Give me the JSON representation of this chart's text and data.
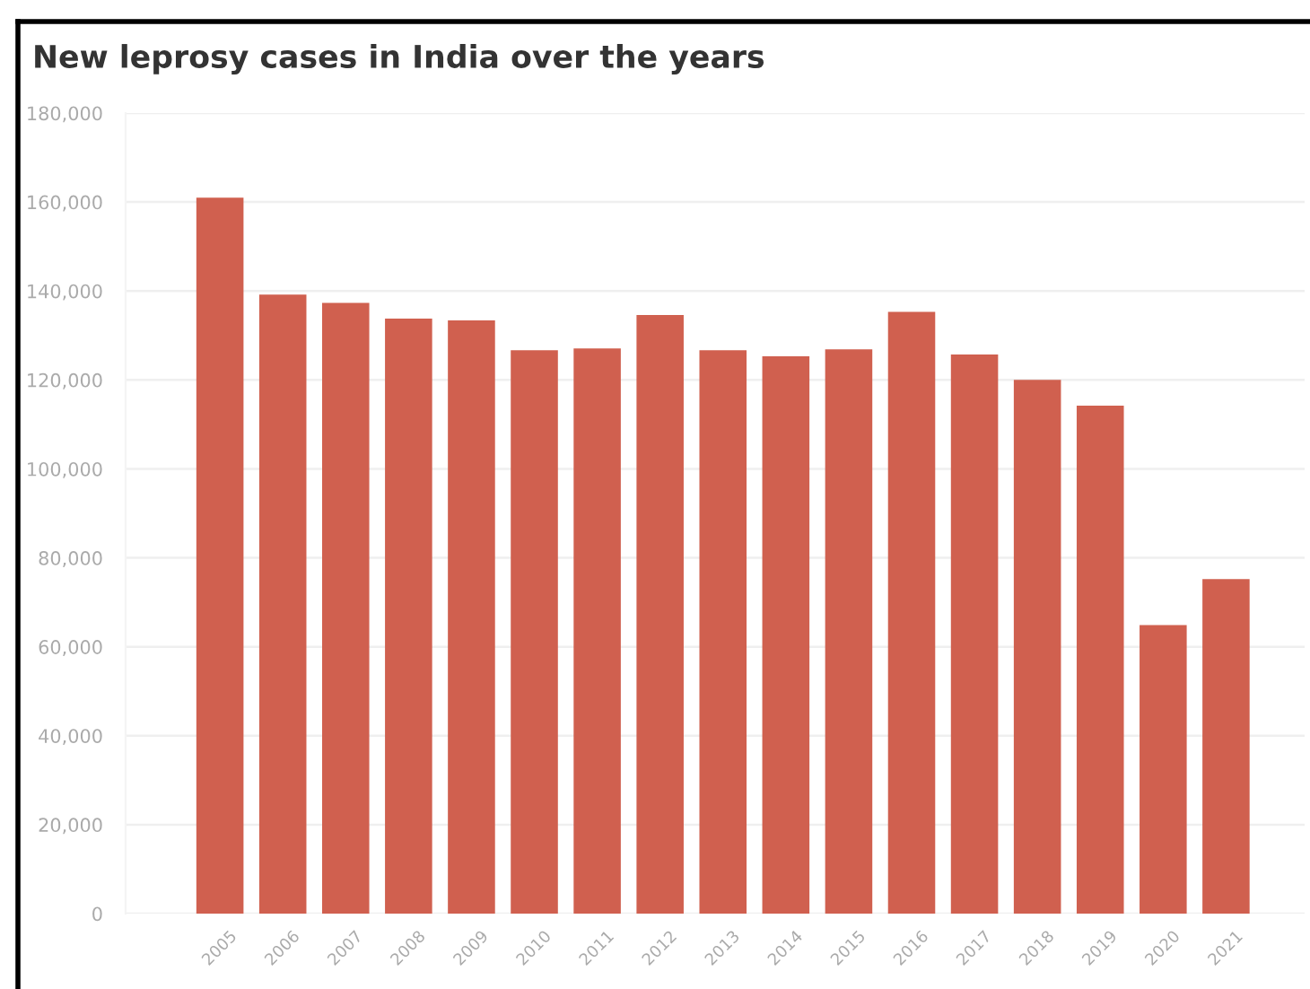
{
  "chart_data": {
    "type": "bar",
    "title": "New leprosy cases in India over the years",
    "categories": [
      "2005",
      "2006",
      "2007",
      "2008",
      "2009",
      "2010",
      "2011",
      "2012",
      "2013",
      "2014",
      "2015",
      "2016",
      "2017",
      "2018",
      "2019",
      "2020",
      "2021"
    ],
    "values": [
      161000,
      139200,
      137300,
      133800,
      133400,
      126700,
      127100,
      134600,
      126700,
      125300,
      126900,
      135300,
      125700,
      120000,
      114200,
      64900,
      75200
    ],
    "color": "#d0604f",
    "ylim": [
      0,
      180000
    ],
    "yticks": [
      {
        "value": 0,
        "label": "0"
      },
      {
        "value": 20000,
        "label": "20,000"
      },
      {
        "value": 40000,
        "label": "40,000"
      },
      {
        "value": 60000,
        "label": "60,000"
      },
      {
        "value": 80000,
        "label": "80,000"
      },
      {
        "value": 100000,
        "label": "100,000"
      },
      {
        "value": 120000,
        "label": "120,000"
      },
      {
        "value": 140000,
        "label": "140,000"
      },
      {
        "value": 160000,
        "label": "160,000"
      },
      {
        "value": 180000,
        "label": "180,000"
      }
    ],
    "grid": "y"
  }
}
